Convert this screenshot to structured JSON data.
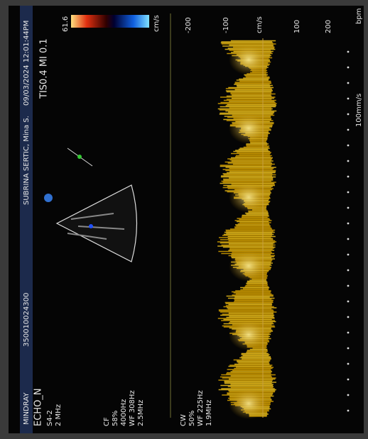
{
  "header": {
    "brand": "MINDRAY",
    "patient_id": "350010024300",
    "patient": "SUBRINA SERTIC, Mina S.",
    "datetime": "09/03/2024 12:01:44PM",
    "indices": "TIS0.4  MI 0.1"
  },
  "left_panel": {
    "mode": "ECHO_N",
    "probe": "S4-2",
    "freq": "2 MHz",
    "cf": [
      "CF",
      "58%",
      "4000Hz",
      "WF 308Hz",
      "2.5MHz"
    ],
    "cw": [
      "CW",
      "50%",
      "WF 225Hz",
      "1.9MHz"
    ]
  },
  "color_scale": {
    "top": "61.6",
    "unit": "cm/s"
  },
  "doppler": {
    "scale_labels": [
      "-200",
      "-100",
      "cm/s",
      "100",
      "200"
    ],
    "sweep": "100mm/s",
    "hr_unit": "bpm"
  }
}
